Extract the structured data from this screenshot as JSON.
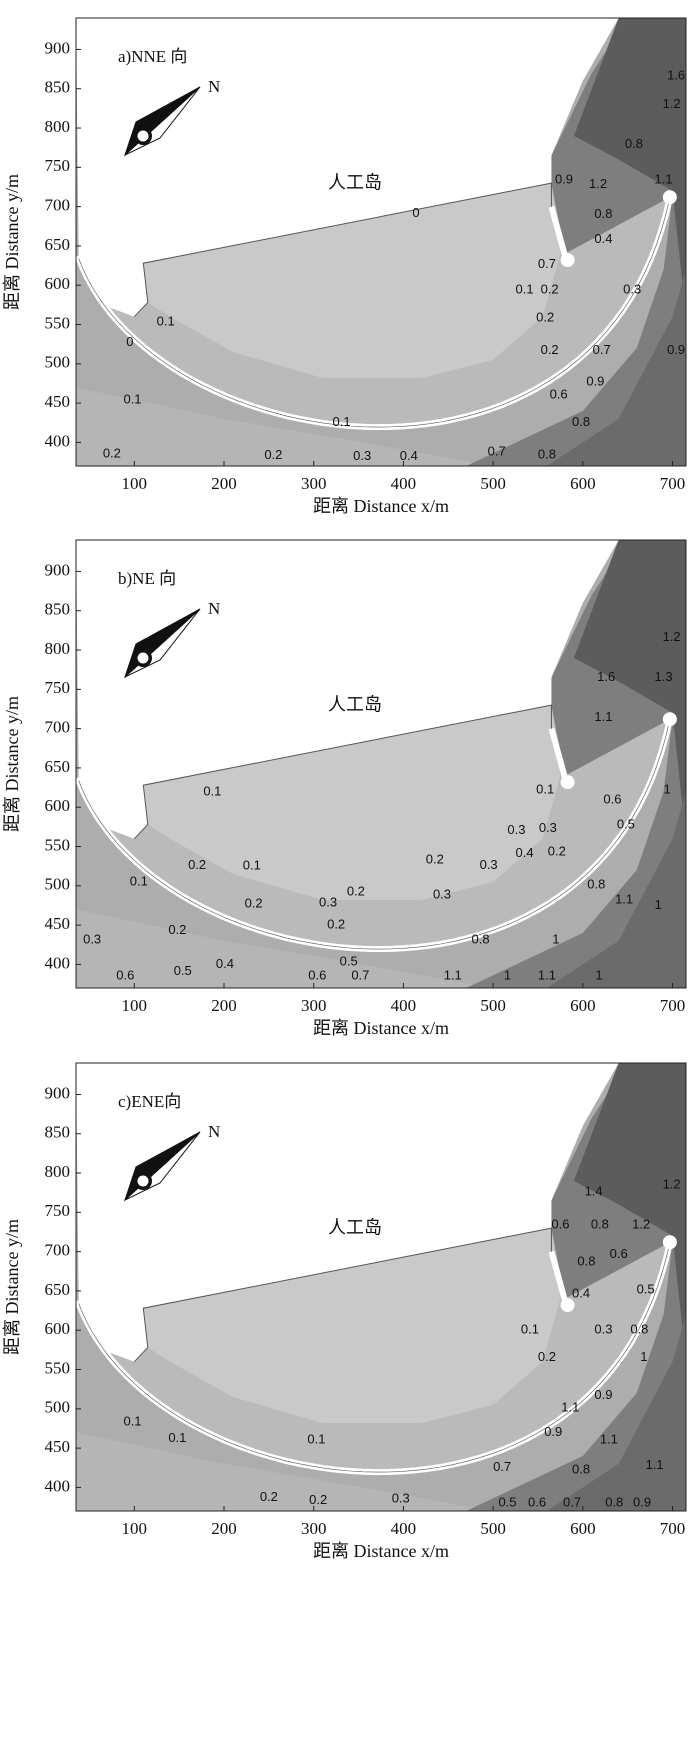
{
  "chart_data": [
    {
      "type": "contour",
      "title": "a)NNE 向",
      "xlabel": "距离 Distance x/m",
      "ylabel": "距离 Distance y/m",
      "xlim": [
        35,
        715
      ],
      "ylim": [
        370,
        940
      ],
      "xticks": [
        100,
        200,
        300,
        400,
        500,
        600,
        700
      ],
      "yticks": [
        400,
        450,
        500,
        550,
        600,
        650,
        700,
        750,
        800,
        850,
        900
      ],
      "compass_label": "N",
      "annotations": [
        {
          "text": "人工岛",
          "x": 346,
          "y": 728
        }
      ],
      "contour_labels": [
        {
          "x": 704,
          "y": 866,
          "value": 1.6
        },
        {
          "x": 699,
          "y": 830,
          "value": 1.2
        },
        {
          "x": 657,
          "y": 779,
          "value": 0.8
        },
        {
          "x": 690,
          "y": 734,
          "value": 1.1
        },
        {
          "x": 579,
          "y": 734,
          "value": 0.9
        },
        {
          "x": 617,
          "y": 728,
          "value": 1.2
        },
        {
          "x": 623,
          "y": 690,
          "value": 0.8
        },
        {
          "x": 623,
          "y": 658,
          "value": 0.4
        },
        {
          "x": 655,
          "y": 594,
          "value": 0.3
        },
        {
          "x": 560,
          "y": 626,
          "value": 0.7
        },
        {
          "x": 535,
          "y": 594,
          "value": 0.1
        },
        {
          "x": 563,
          "y": 594,
          "value": 0.2
        },
        {
          "x": 558,
          "y": 558,
          "value": 0.2
        },
        {
          "x": 563,
          "y": 517,
          "value": 0.2
        },
        {
          "x": 621,
          "y": 517,
          "value": 0.7
        },
        {
          "x": 614,
          "y": 477,
          "value": 0.9
        },
        {
          "x": 704,
          "y": 517,
          "value": 0.9
        },
        {
          "x": 573,
          "y": 460,
          "value": 0.6
        },
        {
          "x": 598,
          "y": 425,
          "value": 0.8
        },
        {
          "x": 504,
          "y": 388,
          "value": 0.7
        },
        {
          "x": 560,
          "y": 384,
          "value": 0.8
        },
        {
          "x": 135,
          "y": 553,
          "value": 0.1
        },
        {
          "x": 98,
          "y": 454,
          "value": 0.1
        },
        {
          "x": 75,
          "y": 385,
          "value": 0.2
        },
        {
          "x": 255,
          "y": 383,
          "value": 0.2
        },
        {
          "x": 331,
          "y": 425,
          "value": 0.1
        },
        {
          "x": 354,
          "y": 382,
          "value": 0.3
        },
        {
          "x": 406,
          "y": 382,
          "value": 0.4
        },
        {
          "x": 95,
          "y": 527,
          "value": 0
        },
        {
          "x": 414,
          "y": 691,
          "value": 0
        }
      ]
    },
    {
      "type": "contour",
      "title": "b)NE 向",
      "xlabel": "距离 Distance x/m",
      "ylabel": "距离 Distance y/m",
      "xlim": [
        35,
        715
      ],
      "ylim": [
        370,
        940
      ],
      "xticks": [
        100,
        200,
        300,
        400,
        500,
        600,
        700
      ],
      "yticks": [
        400,
        450,
        500,
        550,
        600,
        650,
        700,
        750,
        800,
        850,
        900
      ],
      "compass_label": "N",
      "annotations": [
        {
          "text": "人工岛",
          "x": 346,
          "y": 728
        }
      ],
      "contour_labels": [
        {
          "x": 699,
          "y": 816,
          "value": 1.2
        },
        {
          "x": 626,
          "y": 765,
          "value": 1.6
        },
        {
          "x": 690,
          "y": 765,
          "value": 1.3
        },
        {
          "x": 623,
          "y": 714,
          "value": 1.1
        },
        {
          "x": 694,
          "y": 622,
          "value": 1
        },
        {
          "x": 633,
          "y": 609,
          "value": 0.6
        },
        {
          "x": 648,
          "y": 577,
          "value": 0.5
        },
        {
          "x": 615,
          "y": 501,
          "value": 0.8
        },
        {
          "x": 684,
          "y": 475,
          "value": 1
        },
        {
          "x": 646,
          "y": 482,
          "value": 1.1
        },
        {
          "x": 571,
          "y": 543,
          "value": 0.2
        },
        {
          "x": 561,
          "y": 573,
          "value": 0.3
        },
        {
          "x": 535,
          "y": 541,
          "value": 0.4
        },
        {
          "x": 526,
          "y": 570,
          "value": 0.3
        },
        {
          "x": 558,
          "y": 622,
          "value": 0.1
        },
        {
          "x": 495,
          "y": 526,
          "value": 0.3
        },
        {
          "x": 435,
          "y": 533,
          "value": 0.2
        },
        {
          "x": 443,
          "y": 488,
          "value": 0.3
        },
        {
          "x": 347,
          "y": 492,
          "value": 0.2
        },
        {
          "x": 316,
          "y": 478,
          "value": 0.3
        },
        {
          "x": 325,
          "y": 450,
          "value": 0.2
        },
        {
          "x": 233,
          "y": 477,
          "value": 0.2
        },
        {
          "x": 231,
          "y": 525,
          "value": 0.1
        },
        {
          "x": 170,
          "y": 526,
          "value": 0.2
        },
        {
          "x": 187,
          "y": 619,
          "value": 0.1
        },
        {
          "x": 105,
          "y": 505,
          "value": 0.1
        },
        {
          "x": 148,
          "y": 443,
          "value": 0.2
        },
        {
          "x": 53,
          "y": 431,
          "value": 0.3
        },
        {
          "x": 201,
          "y": 400,
          "value": 0.4
        },
        {
          "x": 154,
          "y": 391,
          "value": 0.5
        },
        {
          "x": 90,
          "y": 385,
          "value": 0.6
        },
        {
          "x": 339,
          "y": 403,
          "value": 0.5
        },
        {
          "x": 304,
          "y": 385,
          "value": 0.6
        },
        {
          "x": 352,
          "y": 385,
          "value": 0.7
        },
        {
          "x": 455,
          "y": 385,
          "value": 1.1
        },
        {
          "x": 516,
          "y": 385,
          "value": 1
        },
        {
          "x": 560,
          "y": 385,
          "value": 1.1
        },
        {
          "x": 618,
          "y": 385,
          "value": 1
        },
        {
          "x": 486,
          "y": 431,
          "value": 0.8
        },
        {
          "x": 570,
          "y": 431,
          "value": 1
        }
      ]
    },
    {
      "type": "contour",
      "title": "c)ENE向",
      "xlabel": "距离 Distance x/m",
      "ylabel": "距离 Distance y/m",
      "xlim": [
        35,
        715
      ],
      "ylim": [
        370,
        940
      ],
      "xticks": [
        100,
        200,
        300,
        400,
        500,
        600,
        700
      ],
      "yticks": [
        400,
        450,
        500,
        550,
        600,
        650,
        700,
        750,
        800,
        850,
        900
      ],
      "compass_label": "N",
      "annotations": [
        {
          "text": "人工岛",
          "x": 346,
          "y": 728
        }
      ],
      "contour_labels": [
        {
          "x": 699,
          "y": 785,
          "value": 1.2
        },
        {
          "x": 612,
          "y": 776,
          "value": 1.4
        },
        {
          "x": 575,
          "y": 734,
          "value": 0.6
        },
        {
          "x": 619,
          "y": 734,
          "value": 0.8
        },
        {
          "x": 665,
          "y": 734,
          "value": 1.2
        },
        {
          "x": 640,
          "y": 696,
          "value": 0.6
        },
        {
          "x": 604,
          "y": 687,
          "value": 0.8
        },
        {
          "x": 670,
          "y": 651,
          "value": 0.5
        },
        {
          "x": 598,
          "y": 646,
          "value": 0.4
        },
        {
          "x": 623,
          "y": 600,
          "value": 0.3
        },
        {
          "x": 663,
          "y": 600,
          "value": 0.8
        },
        {
          "x": 541,
          "y": 600,
          "value": 0.1
        },
        {
          "x": 560,
          "y": 565,
          "value": 0.2
        },
        {
          "x": 668,
          "y": 565,
          "value": 1
        },
        {
          "x": 623,
          "y": 517,
          "value": 0.9
        },
        {
          "x": 586,
          "y": 501,
          "value": 1.1
        },
        {
          "x": 567,
          "y": 470,
          "value": 0.9
        },
        {
          "x": 629,
          "y": 460,
          "value": 1.1
        },
        {
          "x": 680,
          "y": 428,
          "value": 1.1
        },
        {
          "x": 598,
          "y": 422,
          "value": 0.8
        },
        {
          "x": 510,
          "y": 425,
          "value": 0.7
        },
        {
          "x": 516,
          "y": 380,
          "value": 0.5
        },
        {
          "x": 549,
          "y": 380,
          "value": 0.6
        },
        {
          "x": 588,
          "y": 380,
          "value": 0.7
        },
        {
          "x": 635,
          "y": 380,
          "value": 0.8
        },
        {
          "x": 666,
          "y": 380,
          "value": 0.9
        },
        {
          "x": 98,
          "y": 483,
          "value": 0.1
        },
        {
          "x": 148,
          "y": 462,
          "value": 0.1
        },
        {
          "x": 303,
          "y": 460,
          "value": 0.1
        },
        {
          "x": 250,
          "y": 387,
          "value": 0.2
        },
        {
          "x": 305,
          "y": 383,
          "value": 0.2
        },
        {
          "x": 397,
          "y": 385,
          "value": 0.3
        }
      ]
    }
  ]
}
